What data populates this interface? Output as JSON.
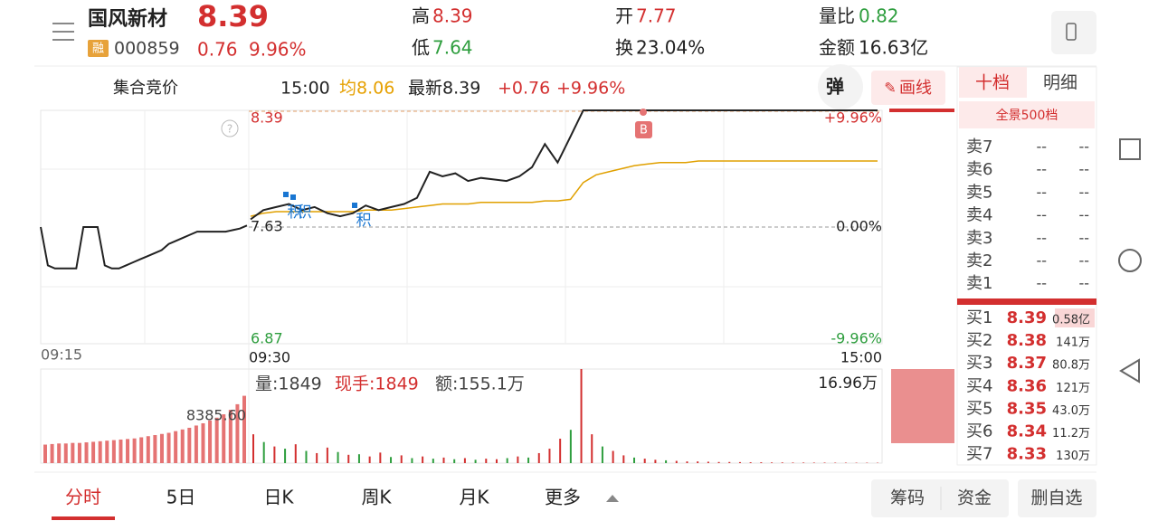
{
  "header": {
    "name": "国风新材",
    "price": "8.39",
    "badge": "融",
    "code": "000859",
    "change": "0.76",
    "change_pct": "9.96%",
    "stats": [
      {
        "label": "高",
        "value": "8.39"
      },
      {
        "label": "低",
        "value": "7.64"
      },
      {
        "label": "开",
        "value": "7.77"
      },
      {
        "label": "换",
        "value": "23.04%"
      },
      {
        "label": "量比",
        "value": "0.82"
      },
      {
        "label": "金额",
        "value": "16.63亿"
      }
    ]
  },
  "toolbar": {
    "session": "集合竞价",
    "time": "15:00",
    "avg": "均8.06",
    "latest": "最新8.39",
    "change": "+0.76",
    "change_pct": "+9.96%",
    "popup": "弹",
    "draw": "画线"
  },
  "panel_tabs": [
    "十档",
    "明细"
  ],
  "chart": {
    "ylim": [
      6.87,
      8.39
    ],
    "yticks": [
      6.87,
      7.63,
      8.39
    ],
    "pct_ticks": [
      {
        "value": 6.87,
        "label": "-9.96%"
      },
      {
        "value": 7.63,
        "label": "0.00%"
      },
      {
        "value": 8.39,
        "label": "+9.96%"
      }
    ],
    "times": [
      "09:15",
      "09:30",
      "15:00"
    ],
    "pre_values": [
      7.63,
      7.38,
      7.36,
      7.36,
      7.36,
      7.36,
      7.63,
      7.63,
      7.63,
      7.38,
      7.36,
      7.36,
      7.38,
      7.4,
      7.42,
      7.44,
      7.46,
      7.48,
      7.52,
      7.54,
      7.56,
      7.58,
      7.6,
      7.6,
      7.6,
      7.6,
      7.6,
      7.61,
      7.62,
      7.64
    ],
    "price_values": [
      7.68,
      7.74,
      7.76,
      7.78,
      7.74,
      7.76,
      7.72,
      7.7,
      7.72,
      7.77,
      7.74,
      7.76,
      7.78,
      7.82,
      7.99,
      7.96,
      7.98,
      7.93,
      7.95,
      7.94,
      7.93,
      7.96,
      8.02,
      8.17,
      8.05,
      8.22,
      8.39,
      8.39,
      8.39,
      8.39,
      8.39,
      8.39,
      8.39,
      8.39,
      8.39,
      8.39,
      8.39,
      8.39,
      8.39,
      8.39,
      8.39,
      8.39,
      8.39,
      8.39,
      8.39,
      8.39,
      8.39,
      8.39,
      8.39,
      8.39
    ],
    "avg_values": [
      7.7,
      7.72,
      7.73,
      7.73,
      7.73,
      7.73,
      7.73,
      7.73,
      7.73,
      7.74,
      7.74,
      7.74,
      7.75,
      7.76,
      7.77,
      7.78,
      7.78,
      7.78,
      7.79,
      7.79,
      7.79,
      7.79,
      7.79,
      7.8,
      7.8,
      7.81,
      7.92,
      7.97,
      7.99,
      8.01,
      8.03,
      8.04,
      8.05,
      8.05,
      8.05,
      8.06,
      8.06,
      8.06,
      8.06,
      8.06,
      8.06,
      8.06,
      8.06,
      8.06,
      8.06,
      8.06,
      8.06,
      8.06,
      8.06,
      8.06
    ],
    "markers": [
      "积",
      "积",
      "积",
      "B"
    ],
    "volume_info": {
      "volume": "量:1849",
      "last": "现手:1849",
      "amount": "额:155.1万"
    },
    "volume_ylim": [
      0,
      169600
    ],
    "volume_ticks": [
      {
        "value": 169600,
        "label": "16.96万"
      }
    ],
    "volume_values": [
      52000,
      38000,
      30000,
      26000,
      34000,
      22000,
      18000,
      28000,
      20000,
      15000,
      16000,
      12000,
      19000,
      11000,
      14000,
      9000,
      12000,
      8000,
      10000,
      7000,
      9000,
      6000,
      8000,
      7000,
      9000,
      12000,
      10000,
      18000,
      26000,
      44000,
      60000,
      169600,
      52000,
      30000,
      22000,
      14000,
      10000,
      8000,
      6000,
      5000,
      4000,
      3000,
      3000,
      2500,
      2000,
      2000,
      1800,
      1500,
      1500,
      1200,
      1200,
      1000,
      1000,
      900,
      900,
      800,
      800,
      700,
      700,
      600
    ],
    "volume_colors": [
      "#d32f2f",
      "#2e9e3e",
      "#d32f2f",
      "#2e9e3e",
      "#d32f2f",
      "#2e9e3e",
      "#d32f2f",
      "#d32f2f",
      "#2e9e3e",
      "#d32f2f",
      "#2e9e3e",
      "#d32f2f",
      "#d32f2f",
      "#2e9e3e",
      "#d32f2f",
      "#2e9e3e",
      "#d32f2f",
      "#2e9e3e",
      "#d32f2f",
      "#2e9e3e",
      "#d32f2f",
      "#2e9e3e",
      "#d32f2f",
      "#d32f2f",
      "#2e9e3e",
      "#d32f2f",
      "#2e9e3e",
      "#d32f2f",
      "#d32f2f",
      "#d32f2f",
      "#2e9e3e",
      "#d32f2f",
      "#d32f2f",
      "#2e9e3e",
      "#d32f2f",
      "#d32f2f",
      "#2e9e3e",
      "#d32f2f",
      "#d32f2f",
      "#2e9e3e",
      "#d32f2f",
      "#d32f2f",
      "#d32f2f",
      "#d32f2f",
      "#d32f2f",
      "#d32f2f",
      "#d32f2f",
      "#d32f2f",
      "#d32f2f",
      "#d32f2f",
      "#d32f2f",
      "#d32f2f",
      "#d32f2f",
      "#d32f2f",
      "#d32f2f",
      "#d32f2f",
      "#d32f2f",
      "#d32f2f",
      "#d32f2f",
      "#d32f2f"
    ],
    "pre_volume_ylim": [
      0,
      16771.2
    ],
    "pre_volume_ticks": [
      {
        "value": 8385.6,
        "label": "8385.60"
      }
    ],
    "pre_volume_values": [
      3300,
      3400,
      3500,
      3500,
      3600,
      3600,
      3700,
      3800,
      3900,
      4000,
      4100,
      4200,
      4300,
      4400,
      4600,
      4800,
      5000,
      5200,
      5400,
      5700,
      6000,
      6300,
      6700,
      7100,
      7600,
      8100,
      8700,
      9500,
      10500,
      12000
    ]
  },
  "order_book": {
    "title": "全景500档",
    "asks": [
      {
        "label": "卖7",
        "price": "--",
        "volume": "--"
      },
      {
        "label": "卖6",
        "price": "--",
        "volume": "--"
      },
      {
        "label": "卖5",
        "price": "--",
        "volume": "--"
      },
      {
        "label": "卖4",
        "price": "--",
        "volume": "--"
      },
      {
        "label": "卖3",
        "price": "--",
        "volume": "--"
      },
      {
        "label": "卖2",
        "price": "--",
        "volume": "--"
      },
      {
        "label": "卖1",
        "price": "--",
        "volume": "--"
      }
    ],
    "bids": [
      {
        "label": "买1",
        "price": "8.39",
        "volume": "0.58亿"
      },
      {
        "label": "买2",
        "price": "8.38",
        "volume": "141万"
      },
      {
        "label": "买3",
        "price": "8.37",
        "volume": "80.8万"
      },
      {
        "label": "买4",
        "price": "8.36",
        "volume": "121万"
      },
      {
        "label": "买5",
        "price": "8.35",
        "volume": "43.0万"
      },
      {
        "label": "买6",
        "price": "8.34",
        "volume": "11.2万"
      },
      {
        "label": "买7",
        "price": "8.33",
        "volume": "130万"
      }
    ]
  },
  "tabs": [
    "分时",
    "5日",
    "日K",
    "周K",
    "月K",
    "更多"
  ],
  "buttons": [
    "筹码",
    "资金",
    "删自选"
  ]
}
